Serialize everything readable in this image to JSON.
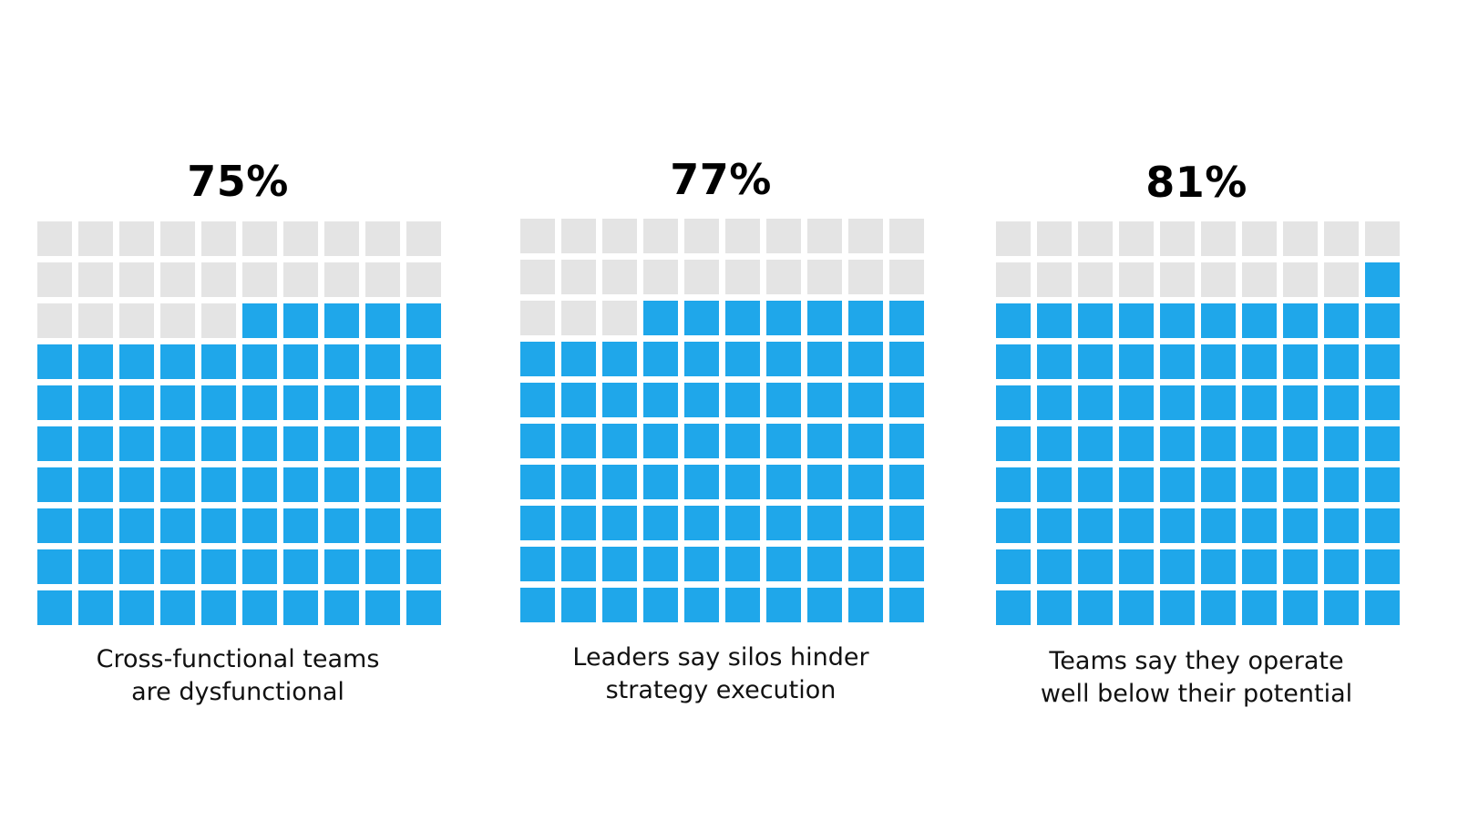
{
  "colors": {
    "filled": "#1FA7EA",
    "empty": "#E4E4E4"
  },
  "chart_data": [
    {
      "type": "waffle",
      "title": "75%",
      "value_percent": 75,
      "total_cells": 100,
      "caption_lines": [
        "Cross-functional teams",
        "are dysfunctional"
      ]
    },
    {
      "type": "waffle",
      "title": "77%",
      "value_percent": 77,
      "total_cells": 100,
      "caption_lines": [
        "Leaders say silos hinder",
        "strategy execution"
      ]
    },
    {
      "type": "waffle",
      "title": "81%",
      "value_percent": 81,
      "total_cells": 100,
      "caption_lines": [
        "Teams say they operate",
        "well below their potential"
      ]
    }
  ]
}
